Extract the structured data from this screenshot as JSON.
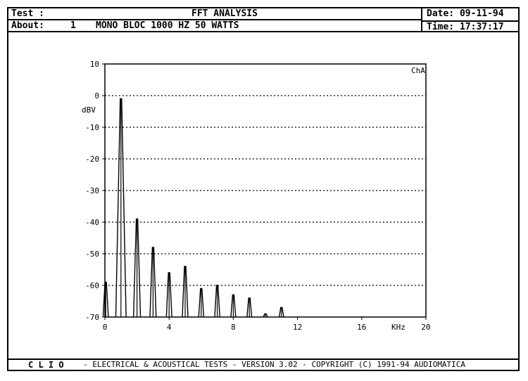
{
  "header": {
    "test_label": "Test :",
    "test_value": "FFT ANALYSIS",
    "about_label": "About:",
    "about_num": "1",
    "about_value": "MONO BLOC 1000 HZ 50 WATTS",
    "date": "Date: 09-11-94",
    "time": "Time: 17:37:17"
  },
  "footer": {
    "brand": "C L I O",
    "text": "-  ELECTRICAL & ACOUSTICAL TESTS  -  VERSION 3.02  -  COPYRIGHT (C) 1991-94 AUDIOMATICA"
  },
  "chart_data": {
    "type": "line",
    "title": "",
    "channel_label": "ChA",
    "ylabel": "dBV",
    "xlabel": "KHz",
    "xlim": [
      0,
      20
    ],
    "ylim": [
      -70,
      10
    ],
    "x_ticks": [
      0,
      4,
      8,
      12,
      16,
      20
    ],
    "y_ticks": [
      10,
      0,
      -10,
      -20,
      -30,
      -40,
      -50,
      -60,
      -70
    ],
    "grid": "horizontal-dotted",
    "series": [
      {
        "peaks": [
          {
            "x": 0.05,
            "y": -59
          },
          {
            "x": 1,
            "y": -1
          },
          {
            "x": 2,
            "y": -39
          },
          {
            "x": 3,
            "y": -48
          },
          {
            "x": 4,
            "y": -56
          },
          {
            "x": 5,
            "y": -54
          },
          {
            "x": 6,
            "y": -61
          },
          {
            "x": 7,
            "y": -60
          },
          {
            "x": 8,
            "y": -63
          },
          {
            "x": 9,
            "y": -64
          },
          {
            "x": 10,
            "y": -69
          },
          {
            "x": 11,
            "y": -67
          }
        ]
      }
    ]
  }
}
